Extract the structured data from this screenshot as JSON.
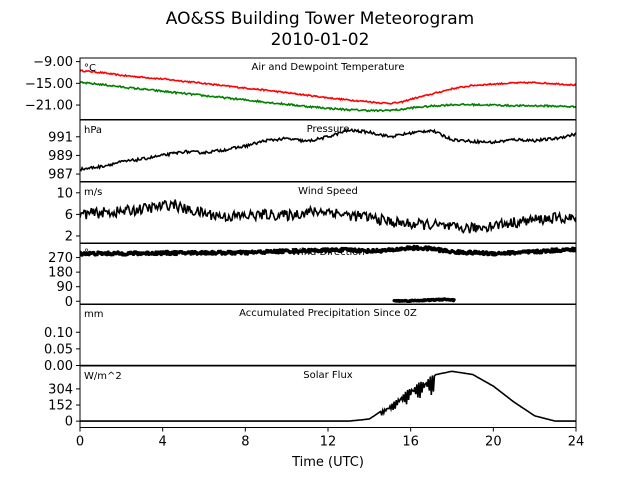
{
  "title": "AO&SS Building Tower Meteorogram",
  "subtitle": "2010-01-02",
  "chart_data": [
    {
      "type": "line",
      "title": "Air and Dewpoint Temperature",
      "unit_label": "°C",
      "ylim": [
        -25,
        -8
      ],
      "yticks": [
        -9,
        -15,
        -21
      ],
      "series": [
        {
          "color": "#ff0000",
          "x": [
            0,
            1,
            2,
            3,
            4,
            5,
            6,
            7,
            8,
            9,
            10,
            11,
            12,
            13,
            14,
            14.5,
            15,
            15.5,
            16,
            17,
            18,
            19,
            20,
            21,
            22,
            23,
            24
          ],
          "y": [
            -11.5,
            -12,
            -12.8,
            -13.3,
            -13.8,
            -14.4,
            -15,
            -15.7,
            -16.3,
            -16.9,
            -17.6,
            -18.3,
            -19,
            -19.6,
            -20.1,
            -20.4,
            -20.5,
            -20.3,
            -19.4,
            -18,
            -16.5,
            -15.6,
            -15.2,
            -14.9,
            -14.8,
            -15.1,
            -15.5
          ],
          "noise": 0.2
        },
        {
          "color": "#008000",
          "x": [
            0,
            1,
            2,
            3,
            4,
            5,
            6,
            7,
            8,
            9,
            10,
            11,
            12,
            13,
            14,
            14.5,
            15,
            15.5,
            16,
            17,
            18,
            19,
            20,
            21,
            22,
            23,
            24
          ],
          "y": [
            -14.8,
            -15.3,
            -16,
            -16.6,
            -17.2,
            -17.8,
            -18.4,
            -19,
            -19.6,
            -20.2,
            -20.8,
            -21.4,
            -21.9,
            -22.3,
            -22.5,
            -22.6,
            -22.4,
            -22.3,
            -21.8,
            -21.3,
            -20.9,
            -20.9,
            -21,
            -21.2,
            -21.2,
            -21.3,
            -21.5
          ],
          "noise": 0.25
        }
      ]
    },
    {
      "type": "line",
      "title": "Pressure",
      "unit_label": "hPa",
      "ylim": [
        986.2,
        992.8
      ],
      "yticks": [
        991,
        989,
        987
      ],
      "series": [
        {
          "color": "#000000",
          "x": [
            0,
            1,
            2,
            3,
            4,
            5,
            6,
            7,
            8,
            9,
            10,
            11,
            12,
            13,
            14,
            15,
            16,
            17,
            18,
            19,
            20,
            21,
            22,
            23,
            24
          ],
          "y": [
            987.5,
            987.8,
            988.3,
            988.6,
            989,
            989.4,
            989.3,
            989.6,
            990,
            990.6,
            990.8,
            990.5,
            991,
            991.7,
            991.5,
            991,
            991.4,
            991.7,
            990.7,
            990.5,
            990.4,
            990.7,
            990.6,
            990.8,
            991.3
          ],
          "noise": 0.15
        }
      ]
    },
    {
      "type": "line",
      "title": "Wind Speed",
      "unit_label": "m/s",
      "ylim": [
        0.6,
        12
      ],
      "yticks": [
        10,
        6,
        2
      ],
      "series": [
        {
          "color": "#000000",
          "x": [
            0,
            1,
            2,
            3,
            4,
            4.5,
            5,
            6,
            7,
            8,
            9,
            10,
            11,
            12,
            13,
            14,
            15,
            16,
            17,
            18,
            19,
            20,
            21,
            22,
            23,
            24
          ],
          "y": [
            6,
            6.3,
            6.5,
            7,
            7.5,
            8,
            7,
            6.2,
            5.6,
            5.7,
            6,
            5.8,
            6.4,
            6.6,
            5.8,
            5.5,
            4.6,
            4.2,
            4.1,
            3.5,
            3.4,
            4,
            4.5,
            5,
            5.3,
            5.2
          ],
          "noise": 1.0
        }
      ]
    },
    {
      "type": "scatter",
      "title": "Wind Direction",
      "unit_label": "°",
      "ylim": [
        -20,
        360
      ],
      "yticks": [
        270,
        180,
        90,
        0
      ],
      "series": [
        {
          "color": "#000000",
          "x": [
            0,
            2,
            4,
            6,
            8,
            10,
            12,
            13,
            14,
            15,
            16,
            17,
            18,
            19,
            20,
            21,
            22,
            23,
            24
          ],
          "y": [
            295,
            295,
            298,
            300,
            300,
            310,
            315,
            318,
            310,
            315,
            330,
            325,
            305,
            300,
            295,
            300,
            305,
            315,
            320
          ],
          "noise": 10
        },
        {
          "color": "#000000",
          "x": [
            15.2,
            15.6,
            16.0,
            17.4,
            17.7,
            18.1
          ],
          "y": [
            3,
            2,
            3,
            10,
            12,
            6
          ],
          "noise": 4
        }
      ]
    },
    {
      "type": "line",
      "title": "Accumulated Precipitation Since 0Z",
      "unit_label": "mm",
      "ylim": [
        0,
        0.185
      ],
      "yticks": [
        0.1,
        0.05,
        0.0
      ],
      "series": [
        {
          "color": "#000000",
          "x": [
            0,
            24
          ],
          "y": [
            0,
            0
          ],
          "noise": 0
        }
      ]
    },
    {
      "type": "area",
      "title": "Solar Flux",
      "unit_label": "W/m^2",
      "ylim": [
        -60,
        520
      ],
      "yticks": [
        304,
        152,
        0
      ],
      "series": [
        {
          "color": "#000000",
          "x": [
            0,
            13,
            14,
            15,
            16,
            17,
            18,
            19,
            20,
            21,
            22,
            23,
            24
          ],
          "y": [
            0,
            0,
            20,
            150,
            320,
            430,
            470,
            440,
            330,
            180,
            50,
            0,
            0
          ],
          "noise": 0,
          "jagged_range": [
            14.5,
            17.2
          ]
        }
      ]
    }
  ],
  "x_axis": {
    "label": "Time (UTC)",
    "range": [
      0,
      24
    ],
    "ticks": [
      0,
      4,
      8,
      12,
      16,
      20,
      24
    ]
  }
}
